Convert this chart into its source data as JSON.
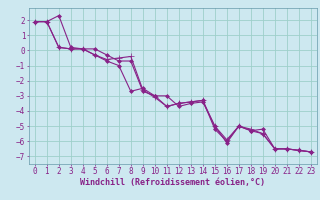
{
  "xlabel": "Windchill (Refroidissement éolien,°C)",
  "bg_color": "#cde8f0",
  "grid_color": "#9ecfca",
  "line_color": "#882288",
  "spine_color": "#6699aa",
  "xlim": [
    -0.5,
    23.5
  ],
  "ylim": [
    -7.5,
    2.8
  ],
  "yticks": [
    -7,
    -6,
    -5,
    -4,
    -3,
    -2,
    -1,
    0,
    1,
    2
  ],
  "xticks": [
    0,
    1,
    2,
    3,
    4,
    5,
    6,
    7,
    8,
    9,
    10,
    11,
    12,
    13,
    14,
    15,
    16,
    17,
    18,
    19,
    20,
    21,
    22,
    23
  ],
  "series": [
    [
      1.9,
      1.9,
      2.3,
      0.2,
      0.1,
      0.1,
      -0.3,
      -0.7,
      -0.7,
      -2.7,
      -3.0,
      -3.0,
      -3.7,
      -3.5,
      -3.4,
      -5.0,
      -6.1,
      -5.0,
      -5.3,
      -5.2,
      -6.5,
      -6.5,
      -6.6,
      -6.7
    ],
    [
      1.9,
      1.9,
      0.2,
      0.1,
      0.1,
      -0.3,
      -0.7,
      -1.0,
      -2.7,
      -2.5,
      -3.0,
      -3.7,
      -3.5,
      -3.4,
      -3.3,
      -5.2,
      -6.0,
      -5.0,
      -5.3,
      -5.5,
      -6.5,
      -6.5,
      -6.6,
      -6.7
    ],
    [
      1.9,
      1.9,
      0.2,
      0.1,
      0.1,
      -0.3,
      -0.6,
      -0.5,
      -0.4,
      -2.6,
      -3.1,
      -3.7,
      -3.5,
      -3.4,
      -3.3,
      -5.0,
      -5.9,
      -5.0,
      -5.2,
      -5.5,
      -6.5,
      -6.5,
      -6.6,
      -6.7
    ]
  ],
  "tick_fontsize": 5.5,
  "xlabel_fontsize": 6.0
}
